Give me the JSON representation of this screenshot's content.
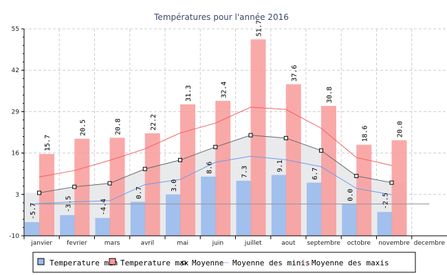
{
  "chart_data": {
    "type": "bar",
    "title": "Températures pour l'année 2016",
    "xlabel": "",
    "ylabel": "",
    "ylim": [
      -10,
      55
    ],
    "yticks": [
      55,
      42,
      29,
      16,
      3,
      -10
    ],
    "grid": true,
    "categories": [
      "janvier",
      "fevrier",
      "mars",
      "avril",
      "mai",
      "juin",
      "juillet",
      "aout",
      "septembre",
      "octobre",
      "novembre",
      "decembre"
    ],
    "series": [
      {
        "name": "Temperature min",
        "kind": "bar",
        "color": "#99bbee",
        "values": [
          -5.7,
          -3.5,
          -4.4,
          0.7,
          3.0,
          8.6,
          7.3,
          9.1,
          6.7,
          0.0,
          -2.5,
          null
        ],
        "labels": [
          "-5.7",
          "-3.5",
          "-4.4",
          "0.7",
          "3.0",
          "8.6",
          "7.3",
          "9.1",
          "6.7",
          "0.0",
          "-2.5",
          null
        ]
      },
      {
        "name": "Temperature max",
        "kind": "bar",
        "color": "#f99a9a",
        "values": [
          15.7,
          20.5,
          20.8,
          22.2,
          31.3,
          32.4,
          51.7,
          37.6,
          30.8,
          18.6,
          20.0,
          null
        ],
        "labels": [
          "15.7",
          "20.5",
          "20.8",
          "22.2",
          "31.3",
          "32.4",
          "51.7",
          "37.6",
          "30.8",
          "18.6",
          "20.0",
          null
        ]
      },
      {
        "name": "Moyenne",
        "kind": "line-area",
        "color": "#666666",
        "values": [
          3.5,
          5.4,
          6.5,
          11.0,
          13.8,
          17.9,
          21.6,
          20.7,
          16.8,
          8.8,
          6.7,
          null
        ]
      },
      {
        "name": "Moyenne des minis",
        "kind": "line",
        "color": "#6f9ae8",
        "values": [
          0.0,
          0.7,
          1.0,
          6.1,
          7.7,
          13.1,
          15.0,
          13.9,
          11.7,
          4.9,
          2.9,
          null
        ]
      },
      {
        "name": "Moyenne des maxis",
        "kind": "line",
        "color": "#f26060",
        "values": [
          8.5,
          10.5,
          13.7,
          17.3,
          22.3,
          25.4,
          30.4,
          29.7,
          23.8,
          14.6,
          12.1,
          null
        ]
      }
    ],
    "reference_line": 0,
    "legend_position": "bottom"
  }
}
